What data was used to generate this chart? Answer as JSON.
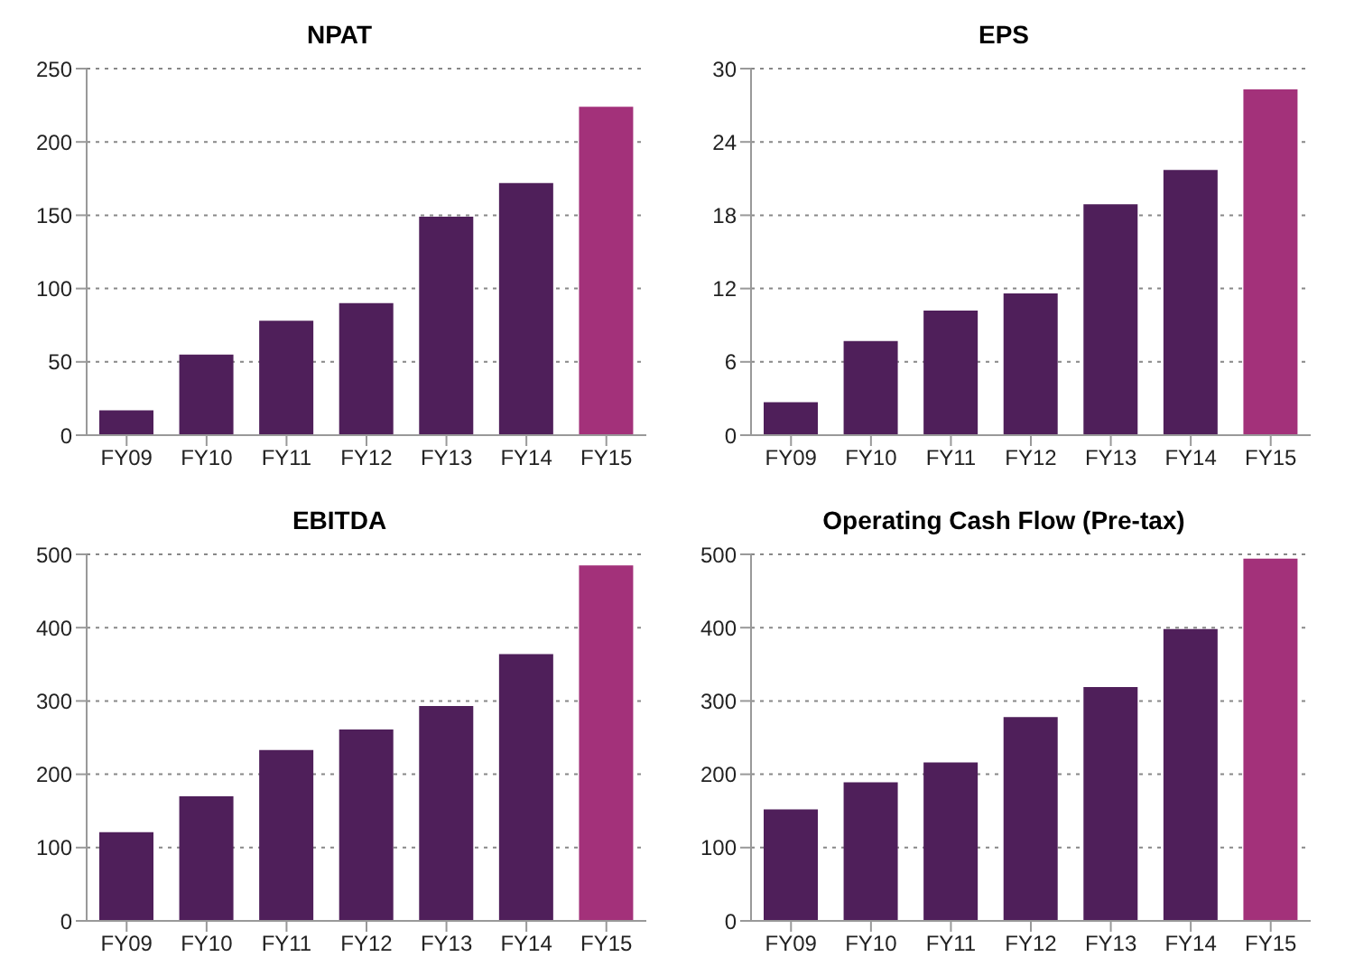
{
  "chart_data": [
    {
      "type": "bar",
      "title": "NPAT",
      "categories": [
        "FY09",
        "FY10",
        "FY11",
        "FY12",
        "FY13",
        "FY14",
        "FY15"
      ],
      "values": [
        17,
        55,
        78,
        90,
        149,
        172,
        224
      ],
      "colors": [
        "#4f1f5a",
        "#4f1f5a",
        "#4f1f5a",
        "#4f1f5a",
        "#4f1f5a",
        "#4f1f5a",
        "#a3317a"
      ],
      "ylim": [
        0,
        250
      ],
      "yticks": [
        0,
        50,
        100,
        150,
        200,
        250
      ],
      "grid": "y"
    },
    {
      "type": "bar",
      "title": "EPS",
      "categories": [
        "FY09",
        "FY10",
        "FY11",
        "FY12",
        "FY13",
        "FY14",
        "FY15"
      ],
      "values": [
        2.7,
        7.7,
        10.2,
        11.6,
        18.9,
        21.7,
        28.3
      ],
      "colors": [
        "#4f1f5a",
        "#4f1f5a",
        "#4f1f5a",
        "#4f1f5a",
        "#4f1f5a",
        "#4f1f5a",
        "#a3317a"
      ],
      "ylim": [
        0,
        30
      ],
      "yticks": [
        0,
        6,
        12,
        18,
        24,
        30
      ],
      "grid": "y"
    },
    {
      "type": "bar",
      "title": "EBITDA",
      "categories": [
        "FY09",
        "FY10",
        "FY11",
        "FY12",
        "FY13",
        "FY14",
        "FY15"
      ],
      "values": [
        121,
        170,
        233,
        261,
        293,
        364,
        485
      ],
      "colors": [
        "#4f1f5a",
        "#4f1f5a",
        "#4f1f5a",
        "#4f1f5a",
        "#4f1f5a",
        "#4f1f5a",
        "#a3317a"
      ],
      "ylim": [
        0,
        500
      ],
      "yticks": [
        0,
        100,
        200,
        300,
        400,
        500
      ],
      "grid": "y"
    },
    {
      "type": "bar",
      "title": "Operating Cash Flow (Pre-tax)",
      "categories": [
        "FY09",
        "FY10",
        "FY11",
        "FY12",
        "FY13",
        "FY14",
        "FY15"
      ],
      "values": [
        152,
        189,
        216,
        278,
        319,
        398,
        494
      ],
      "colors": [
        "#4f1f5a",
        "#4f1f5a",
        "#4f1f5a",
        "#4f1f5a",
        "#4f1f5a",
        "#4f1f5a",
        "#a3317a"
      ],
      "ylim": [
        0,
        500
      ],
      "yticks": [
        0,
        100,
        200,
        300,
        400,
        500
      ],
      "grid": "y"
    }
  ]
}
